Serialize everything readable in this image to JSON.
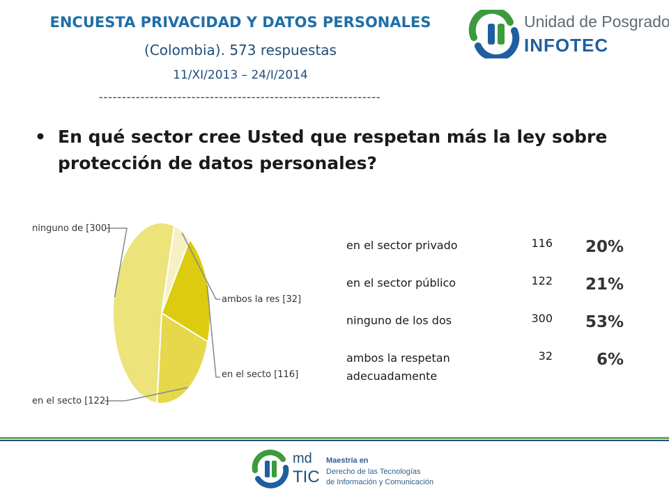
{
  "header": {
    "title": "ENCUESTA PRIVACIDAD Y DATOS PERSONALES",
    "subtitle": "(Colombia). 573 respuestas",
    "dates": "11/XI/2013 – 24/I/2014",
    "rule": "-------------------------------------------------------------"
  },
  "logo_top": {
    "line1": "Unidad de Posgrados",
    "line2": "INFOTEC",
    "colors": {
      "green": "#3d9a3d",
      "blue": "#1f5f9f",
      "gray": "#5f6a72"
    }
  },
  "question": {
    "bullet": "•",
    "text": "En qué sector cree Usted que respetan más la ley sobre protección de datos personales?"
  },
  "chart_data": {
    "type": "pie",
    "categories": [
      "en el sector privado",
      "en el sector público",
      "ninguno de los dos",
      "ambos la respetan adecuadamente"
    ],
    "values": [
      116,
      122,
      300,
      32
    ],
    "slice_labels": [
      "en el secto [116]",
      "en el secto [122]",
      "ninguno de [300]",
      "ambos la res [32]"
    ],
    "colors": [
      "#dccb0e",
      "#e6d84a",
      "#ece47a",
      "#f6f0c2"
    ]
  },
  "table": {
    "rows": [
      {
        "label": "en el sector privado",
        "count": "116",
        "percent": "20%"
      },
      {
        "label": "en el sector público",
        "count": "122",
        "percent": "21%"
      },
      {
        "label": "ninguno de los dos",
        "count": "300",
        "percent": "53%"
      },
      {
        "label": "ambos la respetan adecuadamente",
        "count": "32",
        "percent": "6%"
      }
    ]
  },
  "footer": {
    "md": "md",
    "tic": "TIC",
    "line1": "Maestría en",
    "line2": "Derecho de las Tecnologías",
    "line3": "de Información y Comunicación",
    "colors": {
      "green_line": "#6aa84f",
      "blue_line": "#1f4e79"
    }
  }
}
